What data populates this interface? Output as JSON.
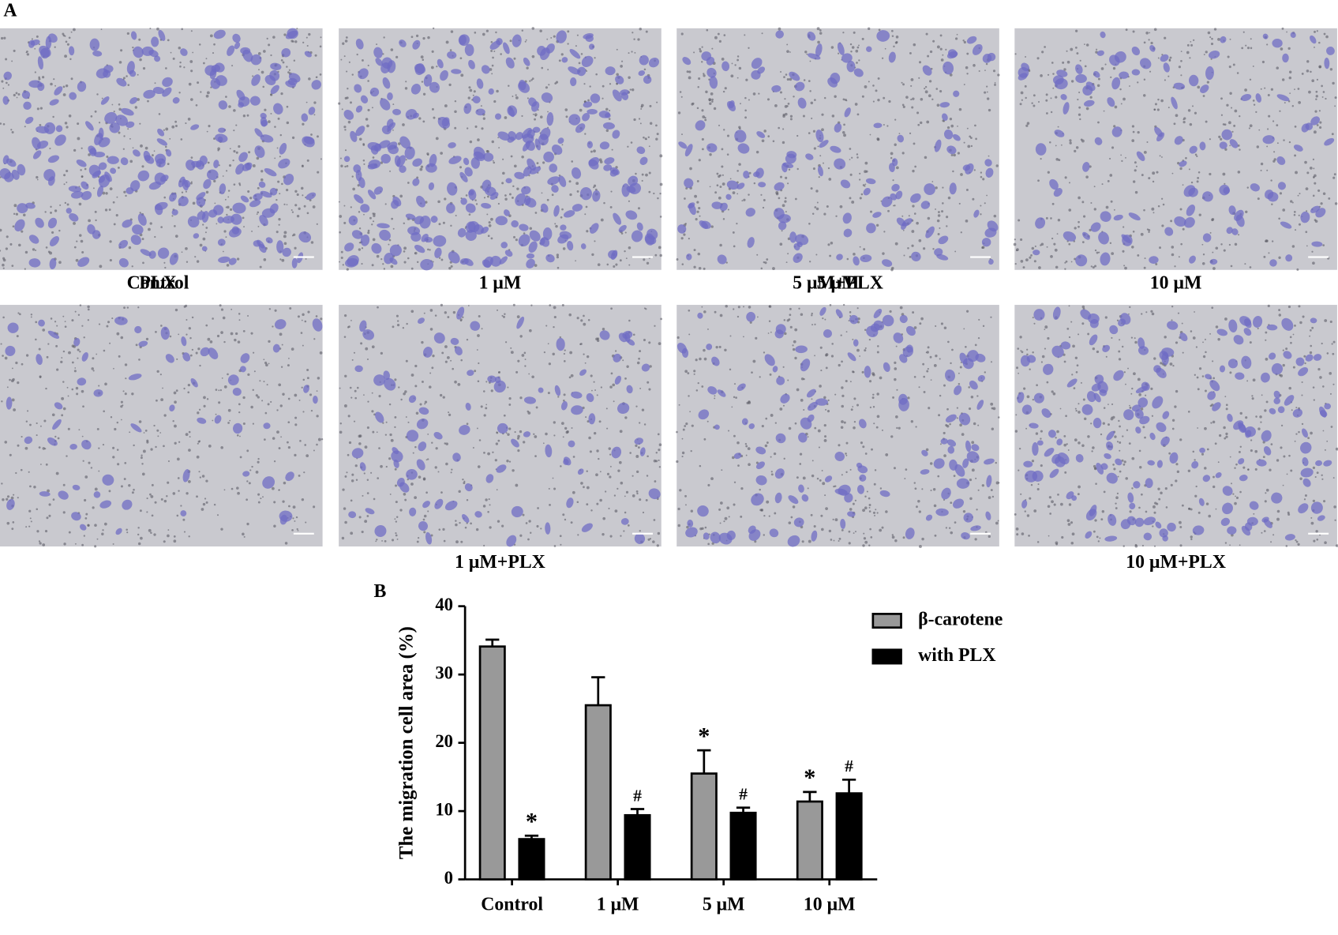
{
  "panel_a": {
    "label": "A",
    "captions": [
      "Control",
      "1 μM",
      "5 μM",
      "10 μM",
      "PLX",
      "1 μM+PLX",
      "5 μM+PLX",
      "10 μM+PLX"
    ]
  },
  "chart_data": {
    "type": "bar",
    "panel_label": "B",
    "ylabel": "The migration cell area (%)",
    "categories": [
      "Control",
      "1 μM",
      "5 μM",
      "10 μM"
    ],
    "series": [
      {
        "name": "β-carotene",
        "color": "#999999",
        "values": [
          34.1,
          25.5,
          15.5,
          11.4
        ],
        "errors": [
          1.0,
          4.1,
          3.4,
          1.4
        ],
        "annotations": [
          null,
          null,
          "*",
          "*"
        ]
      },
      {
        "name": "with PLX",
        "color": "#000000",
        "values": [
          5.9,
          9.4,
          9.75,
          12.6
        ],
        "errors": [
          0.5,
          0.9,
          0.75,
          2.0
        ],
        "annotations": [
          "*",
          "#",
          "#",
          "#"
        ]
      }
    ],
    "ylim": [
      0,
      40
    ],
    "yticks": [
      0,
      10,
      20,
      30,
      40
    ],
    "grid": false
  }
}
